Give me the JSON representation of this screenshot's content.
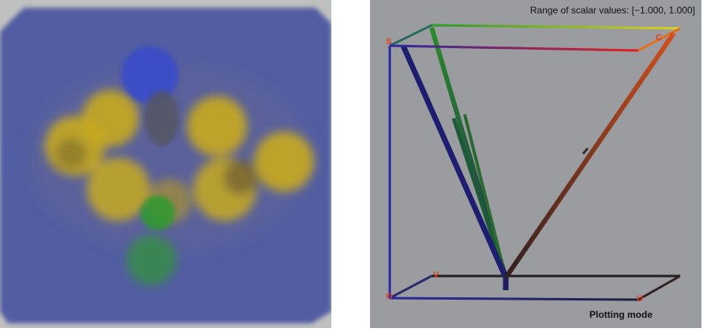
{
  "left_view": {
    "background": "#bfc0c0",
    "volume_color": "#4a55a0",
    "colors": {
      "yellow": "#c8aa1e",
      "blue": "#3a4ec8",
      "green": "#2e9a2e",
      "dark": "#555560"
    }
  },
  "right_view": {
    "background": "#9a9ca0",
    "range_label": "Range of scalar values: [−1.000,  1.000]",
    "mode_label": "Plotting mode",
    "corner_labels": {
      "S": "S",
      "C": "C",
      "V": "V",
      "O": "O",
      "U": "U"
    }
  }
}
